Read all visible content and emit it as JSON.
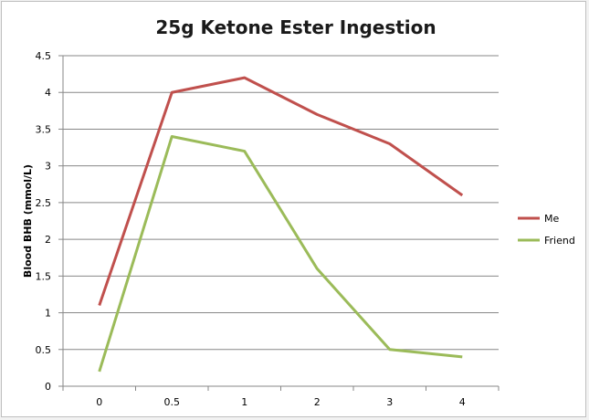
{
  "chart_data": {
    "type": "line",
    "title": "25g Ketone Ester Ingestion",
    "xlabel": "",
    "ylabel": "Blood BHB  (mmol/L)",
    "categories": [
      "0",
      "0.5",
      "1",
      "2",
      "3",
      "4"
    ],
    "yticks": [
      "0",
      "0.5",
      "1",
      "1.5",
      "2",
      "2.5",
      "3",
      "3.5",
      "4",
      "4.5"
    ],
    "ylim": [
      0,
      4.5
    ],
    "grid": true,
    "legend_position": "right",
    "series": [
      {
        "name": "Me",
        "color": "#c0504d",
        "values": [
          1.1,
          4.0,
          4.2,
          3.7,
          3.3,
          2.6
        ]
      },
      {
        "name": "Friend",
        "color": "#9bbb59",
        "values": [
          0.2,
          3.4,
          3.2,
          1.6,
          0.5,
          0.4
        ]
      }
    ]
  }
}
